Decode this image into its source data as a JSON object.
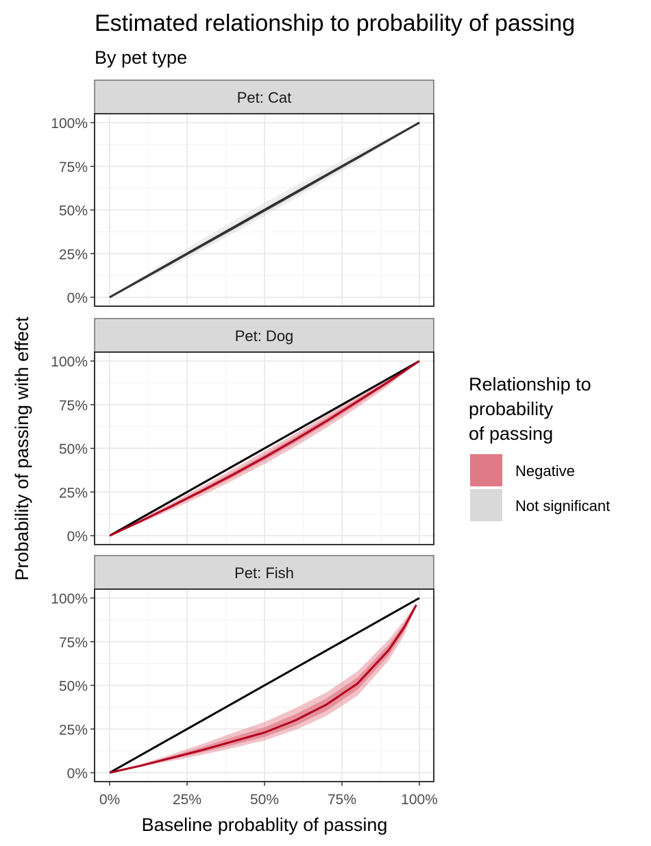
{
  "chart_data": {
    "type": "line",
    "title": "Estimated relationship to probability of passing",
    "subtitle": "By pet type",
    "xlabel": "Baseline probablity of passing",
    "ylabel": "Probability of passing with effect",
    "xlim": [
      0,
      1
    ],
    "ylim": [
      0,
      1
    ],
    "x_ticks": [
      "0%",
      "25%",
      "50%",
      "75%",
      "100%"
    ],
    "y_ticks": [
      "0%",
      "25%",
      "50%",
      "75%",
      "100%"
    ],
    "grid": true,
    "legend": {
      "title": "Relationship to probability of passing",
      "position": "right",
      "entries": [
        {
          "label": "Negative",
          "color": "#DF7A87"
        },
        {
          "label": "Not significant",
          "color": "#D9D9D9"
        }
      ]
    },
    "panels": [
      {
        "label": "Pet: Cat",
        "relationship": "Not significant",
        "reference_line": {
          "x": [
            0,
            1
          ],
          "y": [
            0,
            1
          ]
        },
        "estimate": {
          "x": [
            0,
            0.1,
            0.2,
            0.3,
            0.4,
            0.5,
            0.6,
            0.7,
            0.8,
            0.9,
            1
          ],
          "y": [
            0,
            0.099,
            0.198,
            0.298,
            0.397,
            0.497,
            0.597,
            0.698,
            0.798,
            0.899,
            1
          ]
        },
        "ci_outer": {
          "lower": [
            0,
            0.085,
            0.175,
            0.27,
            0.365,
            0.465,
            0.565,
            0.67,
            0.775,
            0.885,
            1
          ],
          "upper": [
            0,
            0.115,
            0.225,
            0.335,
            0.44,
            0.54,
            0.64,
            0.735,
            0.83,
            0.915,
            1
          ]
        },
        "ci_inner": {
          "lower": [
            0,
            0.093,
            0.188,
            0.285,
            0.382,
            0.482,
            0.582,
            0.685,
            0.788,
            0.893,
            1
          ],
          "upper": [
            0,
            0.106,
            0.21,
            0.313,
            0.415,
            0.515,
            0.615,
            0.713,
            0.81,
            0.906,
            1
          ]
        }
      },
      {
        "label": "Pet: Dog",
        "relationship": "Negative",
        "reference_line": {
          "x": [
            0,
            1
          ],
          "y": [
            0,
            1
          ]
        },
        "estimate": {
          "x": [
            0,
            0.1,
            0.2,
            0.3,
            0.4,
            0.5,
            0.6,
            0.7,
            0.8,
            0.9,
            1
          ],
          "y": [
            0,
            0.083,
            0.169,
            0.258,
            0.351,
            0.448,
            0.55,
            0.656,
            0.768,
            0.881,
            1
          ]
        },
        "ci_outer": {
          "lower": [
            0,
            0.072,
            0.149,
            0.231,
            0.318,
            0.411,
            0.511,
            0.618,
            0.734,
            0.858,
            1
          ],
          "upper": [
            0,
            0.094,
            0.189,
            0.284,
            0.383,
            0.483,
            0.586,
            0.692,
            0.799,
            0.903,
            1
          ]
        },
        "ci_inner": {
          "lower": [
            0,
            0.078,
            0.16,
            0.246,
            0.337,
            0.432,
            0.533,
            0.639,
            0.753,
            0.87,
            1
          ],
          "upper": [
            0,
            0.088,
            0.178,
            0.27,
            0.365,
            0.464,
            0.567,
            0.673,
            0.783,
            0.892,
            1
          ]
        }
      },
      {
        "label": "Pet: Fish",
        "relationship": "Negative",
        "reference_line": {
          "x": [
            0,
            1
          ],
          "y": [
            0,
            1
          ]
        },
        "estimate": {
          "x": [
            0,
            0.1,
            0.2,
            0.3,
            0.4,
            0.5,
            0.6,
            0.7,
            0.8,
            0.9,
            0.95,
            0.99
          ],
          "y": [
            0,
            0.04,
            0.085,
            0.13,
            0.18,
            0.23,
            0.3,
            0.39,
            0.51,
            0.7,
            0.83,
            0.96
          ]
        },
        "ci_outer": {
          "lower": [
            0,
            0.033,
            0.068,
            0.103,
            0.142,
            0.185,
            0.245,
            0.325,
            0.44,
            0.64,
            0.785,
            0.95
          ],
          "upper": [
            0,
            0.048,
            0.105,
            0.165,
            0.23,
            0.29,
            0.37,
            0.46,
            0.58,
            0.76,
            0.87,
            0.97
          ]
        },
        "ci_inner": {
          "lower": [
            0,
            0.037,
            0.077,
            0.117,
            0.16,
            0.205,
            0.27,
            0.355,
            0.475,
            0.67,
            0.805,
            0.955
          ],
          "upper": [
            0,
            0.044,
            0.094,
            0.147,
            0.205,
            0.26,
            0.335,
            0.425,
            0.545,
            0.73,
            0.85,
            0.965
          ]
        }
      }
    ]
  }
}
